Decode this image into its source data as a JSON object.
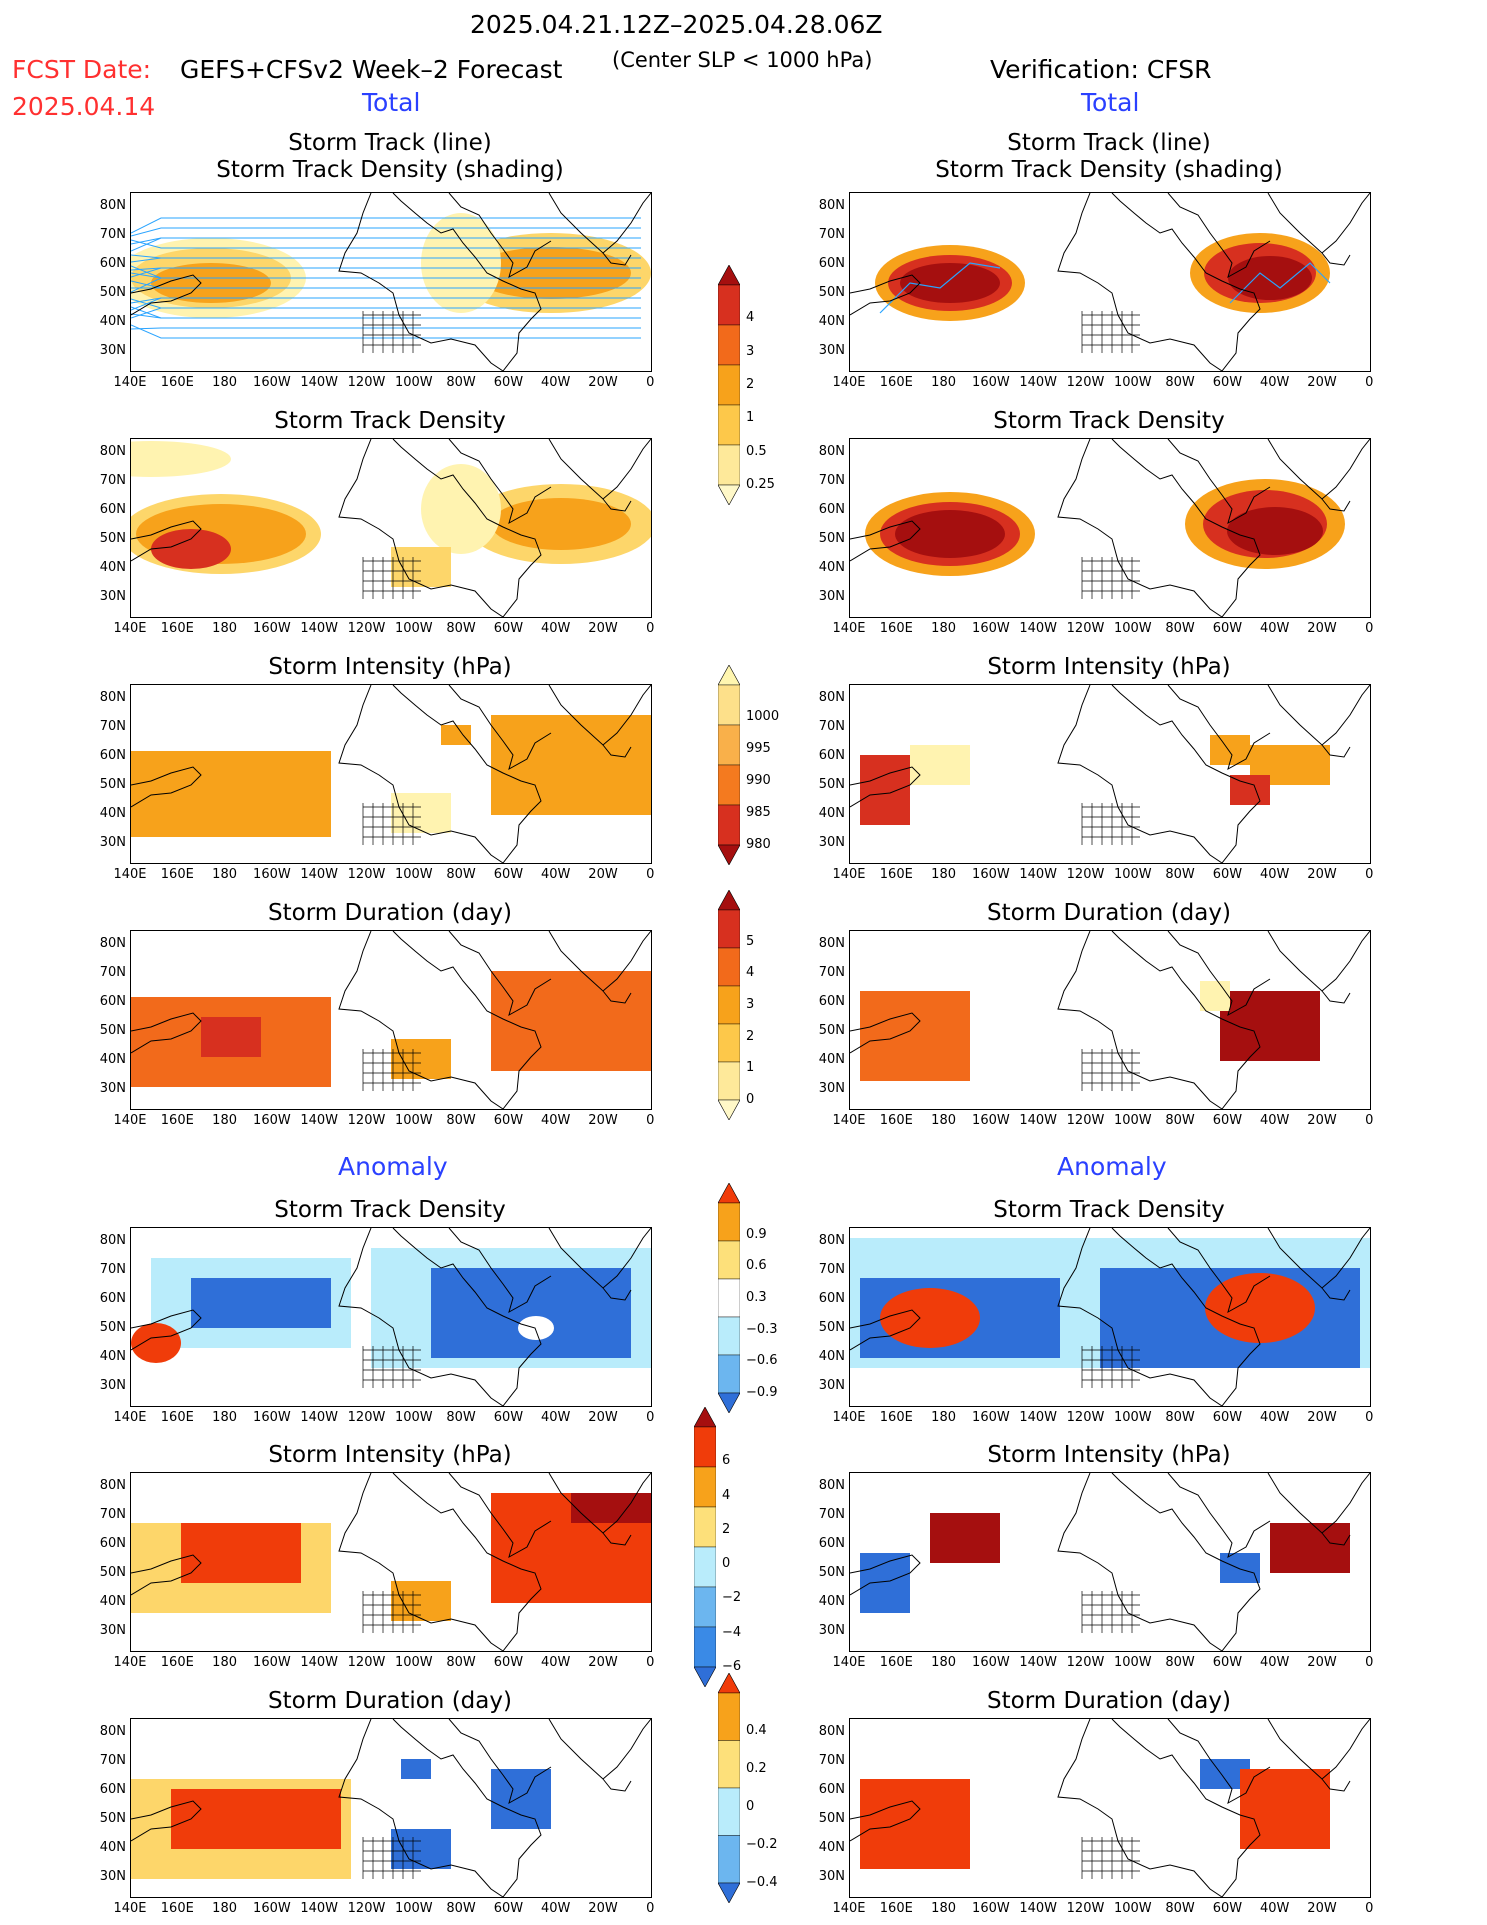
{
  "header": {
    "date_range": "2025.04.21.12Z–2025.04.28.06Z",
    "fcst_label": "FCST Date:",
    "fcst_date": "2025.04.14",
    "forecast_title": "GEFS+CFSv2 Week–2 Forecast",
    "condition": "(Center SLP < 1000 hPa)",
    "verification": "Verification: CFSR"
  },
  "sections": {
    "total": "Total",
    "anomaly": "Anomaly"
  },
  "panel_titles": {
    "track_line": "Storm Track (line)",
    "track_shading": "Storm Track Density (shading)",
    "density": "Storm Track Density",
    "intensity": "Storm Intensity (hPa)",
    "duration": "Storm Duration (day)"
  },
  "axes": {
    "lat_labels": [
      "80N",
      "70N",
      "60N",
      "50N",
      "40N",
      "30N"
    ],
    "lon_labels": [
      "140E",
      "160E",
      "180",
      "160W",
      "140W",
      "120W",
      "100W",
      "80W",
      "60W",
      "40W",
      "20W",
      "0"
    ]
  },
  "colorbars": {
    "density_total": {
      "labels": [
        "4",
        "3",
        "2",
        "1",
        "0.5",
        "0.25"
      ],
      "colors": [
        "#a50f0f",
        "#d7301f",
        "#f26a1b",
        "#f7a21b",
        "#fdc84a",
        "#fee99a",
        "#fff8c8"
      ]
    },
    "intensity_total": {
      "labels": [
        "1000",
        "995",
        "990",
        "985",
        "980"
      ],
      "colors": [
        "#fff6b0",
        "#fde08a",
        "#f9b04a",
        "#f47a1f",
        "#d7301f",
        "#a50f0f"
      ]
    },
    "duration_total": {
      "labels": [
        "5",
        "4",
        "3",
        "2",
        "1",
        "0"
      ],
      "colors": [
        "#a50f0f",
        "#d7301f",
        "#f26a1b",
        "#f7a21b",
        "#fdc84a",
        "#fee99a",
        "#fff8c8"
      ]
    },
    "density_anom": {
      "labels": [
        "0.9",
        "0.6",
        "0.3",
        "−0.3",
        "−0.6",
        "−0.9"
      ],
      "colors": [
        "#f03c0a",
        "#f7a21b",
        "#fde07a",
        "#ffffff",
        "#b9ecfb",
        "#6cb6ef",
        "#2f6fd8"
      ]
    },
    "intensity_anom": {
      "labels": [
        "6",
        "4",
        "2",
        "0",
        "−2",
        "−4",
        "−6"
      ],
      "colors": [
        "#a50f0f",
        "#f03c0a",
        "#f7a21b",
        "#fde07a",
        "#b9ecfb",
        "#6cb6ef",
        "#3a8ae6",
        "#2f6fd8"
      ]
    },
    "duration_anom": {
      "labels": [
        "0.4",
        "0.2",
        "0",
        "−0.2",
        "−0.4"
      ],
      "colors": [
        "#f03c0a",
        "#f7a21b",
        "#fde07a",
        "#b9ecfb",
        "#6cb6ef",
        "#2f6fd8"
      ]
    }
  },
  "colors": {
    "shade_dark": "#a50f0f",
    "shade_red": "#d7301f",
    "shade_orange": "#f26a1b",
    "shade_lt_orange": "#f7a21b",
    "shade_yellow": "#fdd66a",
    "shade_pale": "#fff3b0",
    "anom_pos": "#f03c0a",
    "anom_neg": "#2f6fd8",
    "anom_lt_neg": "#b9ecfb",
    "anom_mid_neg": "#6cb6ef",
    "track_blue": "#2aa4ff",
    "title_red": "#ff3030",
    "section_blue": "#2a40ff"
  }
}
